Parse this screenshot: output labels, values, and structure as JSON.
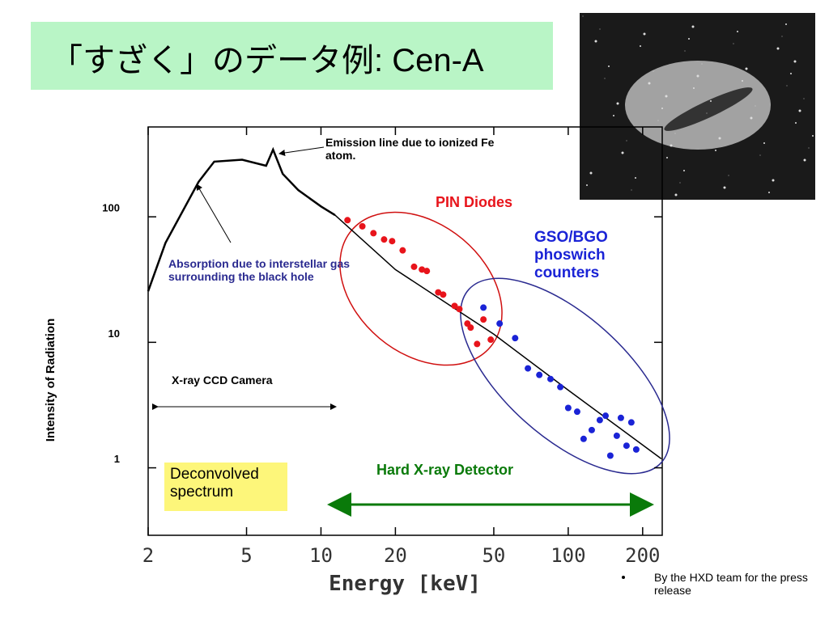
{
  "title": "「すざく」のデータ例: Cen-A",
  "footnote": "By  the HXD team for the press release",
  "chart_data": {
    "type": "line",
    "x_label": "Energy [keV]",
    "y_label": "Intensity of Radiation",
    "log_x": true,
    "log_y": true,
    "xlim": [
      2,
      240
    ],
    "ylim": [
      0.29,
      520
    ],
    "xticks": [
      2,
      5,
      10,
      20,
      50,
      100,
      200
    ],
    "yticks": [
      1,
      10,
      100
    ],
    "annotations": [
      "Emission line due to ionized Fe atom.",
      "Absorption due to interstellar gas surrounding the black hole",
      "Hard X-ray Detector",
      "Deconvolved spectrum"
    ],
    "series": [
      {
        "name": "X-ray CCD Camera",
        "style": "line",
        "color": "#000000",
        "x": [
          2.0,
          2.35,
          3.2,
          3.7,
          4.8,
          6.0,
          6.4,
          7.0,
          8.1,
          10.0,
          11.4
        ],
        "values": [
          25.5,
          62,
          190,
          275,
          285,
          255,
          343,
          220,
          163,
          121,
          103
        ]
      },
      {
        "style": "line",
        "color": "#000000",
        "x": [
          11.4,
          20,
          50,
          100,
          238
        ],
        "values": [
          103,
          38,
          11.6,
          4.16,
          1.18
        ]
      },
      {
        "name": "PIN Diodes",
        "style": "points",
        "color": "#e8141b",
        "x": [
          12.8,
          14.7,
          16.3,
          18.0,
          19.4,
          21.4,
          23.8,
          25.6,
          26.8,
          29.8,
          31.2,
          34.7,
          36.3,
          39.1,
          40.3,
          42.8,
          45.4,
          48.6
        ],
        "values": [
          94,
          84,
          74,
          66,
          64,
          54,
          40,
          38,
          37,
          25,
          24,
          19.5,
          18.4,
          14.1,
          13.1,
          9.7,
          15.2,
          10.5
        ]
      },
      {
        "name": "GSO/BGO phoswich counters",
        "style": "points",
        "color": "#1a23d6",
        "x": [
          45.4,
          52.8,
          61.0,
          68.7,
          76.4,
          84.8,
          92.9,
          100.0,
          108.7,
          115.4,
          124.5,
          134.2,
          141.6,
          148.0,
          157.2,
          163.3,
          172.1,
          180.0,
          188.4
        ],
        "values": [
          18.9,
          14.1,
          10.8,
          6.2,
          5.5,
          5.1,
          4.4,
          3.0,
          2.8,
          1.7,
          2.0,
          2.4,
          2.6,
          1.25,
          1.8,
          2.5,
          1.5,
          2.3,
          1.4
        ]
      }
    ]
  }
}
